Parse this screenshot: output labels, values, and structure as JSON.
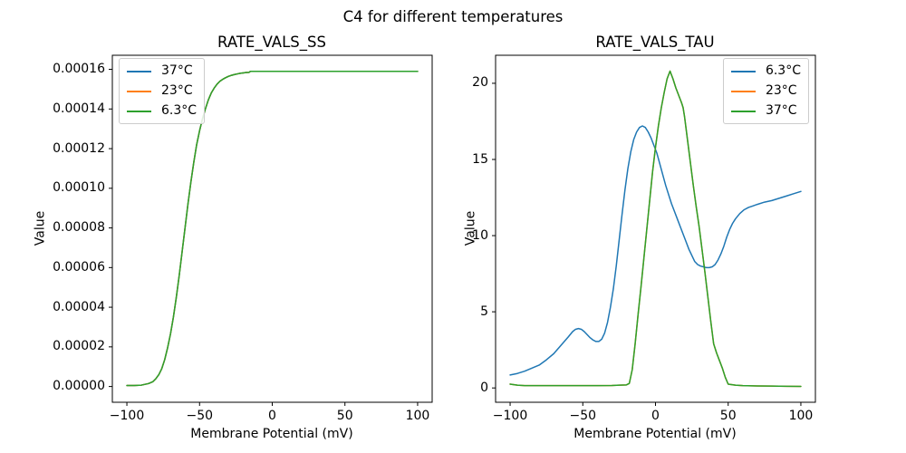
{
  "figure": {
    "suptitle": "C4 for different temperatures",
    "background_color": "#ffffff",
    "text_color": "#000000",
    "spine_color": "#000000"
  },
  "palette": {
    "blue": "#1f77b4",
    "orange": "#ff7f0e",
    "green": "#2ca02c"
  },
  "chart_data": [
    {
      "type": "line",
      "title": "RATE_VALS_SS",
      "xlabel": "Membrane Potential (mV)",
      "ylabel": "Value",
      "xlim": [
        -110,
        110
      ],
      "ylim": [
        -0.795,
        16.71
      ],
      "y_scale": 1e-05,
      "grid": false,
      "xticks": {
        "values": [
          -100,
          -50,
          0,
          50,
          100
        ],
        "labels": [
          "−100",
          "−50",
          "0",
          "50",
          "100"
        ]
      },
      "yticks": {
        "values": [
          0,
          2,
          4,
          6,
          8,
          10,
          12,
          14,
          16
        ],
        "labels": [
          "0.00000",
          "0.00002",
          "0.00004",
          "0.00006",
          "0.00008",
          "0.00010",
          "0.00012",
          "0.00014",
          "0.00016"
        ]
      },
      "legend": {
        "position": "upper-left"
      },
      "note": "All three temperature curves overlap exactly; only the last-drawn 6.3°C green curve is visible. y values are in units of y_scale (1e-5). Sigmoid rising from ~0 at −100 mV to plateau 0.0000159, half-max near −60 mV, small step near −15 mV.",
      "series": [
        {
          "name": "37°C",
          "color": "#1f77b4",
          "same_as": "6.3°C",
          "occluded": true
        },
        {
          "name": "23°C",
          "color": "#ff7f0e",
          "same_as": "6.3°C",
          "occluded": true
        },
        {
          "name": "6.3°C",
          "color": "#2ca02c",
          "x": [
            -100,
            -95,
            -90,
            -85,
            -82,
            -80,
            -78,
            -76,
            -74,
            -72,
            -70,
            -68,
            -66,
            -64,
            -62,
            -60,
            -58,
            -56,
            -54,
            -52,
            -50,
            -48,
            -46,
            -44,
            -42,
            -40,
            -38,
            -36,
            -34,
            -32,
            -30,
            -28,
            -26,
            -24,
            -22,
            -20,
            -18,
            -16,
            -15,
            -12,
            -10,
            0,
            20,
            40,
            60,
            80,
            100
          ],
          "y": [
            0.05,
            0.05,
            0.07,
            0.15,
            0.25,
            0.4,
            0.6,
            0.9,
            1.35,
            1.95,
            2.65,
            3.5,
            4.5,
            5.6,
            6.8,
            8.0,
            9.2,
            10.3,
            11.3,
            12.2,
            12.9,
            13.5,
            14.0,
            14.45,
            14.8,
            15.05,
            15.25,
            15.4,
            15.5,
            15.58,
            15.65,
            15.7,
            15.74,
            15.77,
            15.8,
            15.82,
            15.84,
            15.85,
            15.9,
            15.9,
            15.9,
            15.9,
            15.9,
            15.9,
            15.9,
            15.9,
            15.9
          ]
        }
      ]
    },
    {
      "type": "line",
      "title": "RATE_VALS_TAU",
      "xlabel": "Membrane Potential (mV)",
      "ylabel": "Value",
      "xlim": [
        -110,
        110
      ],
      "ylim": [
        -0.94,
        21.84
      ],
      "y_scale": 1,
      "grid": false,
      "xticks": {
        "values": [
          -100,
          -50,
          0,
          50,
          100
        ],
        "labels": [
          "−100",
          "−50",
          "0",
          "50",
          "100"
        ]
      },
      "yticks": {
        "values": [
          0,
          5,
          10,
          15,
          20
        ],
        "labels": [
          "0",
          "5",
          "10",
          "15",
          "20"
        ]
      },
      "legend": {
        "position": "upper-right"
      },
      "note": "23°C curve is fully occluded beneath the 37°C green curve. Blue 6.3°C: small bump ~3.9 at −54 mV, dip ~3.05 at −40, peak 17.2 at −9, flat minimum ~7.9 near +35, rises to 12.9 at +100. Green 37°C: ~0.15 until −18 mV, peak 20.8 at +10, back to ~0.1 after +50.",
      "series": [
        {
          "name": "6.3°C",
          "color": "#1f77b4",
          "x": [
            -100,
            -95,
            -90,
            -85,
            -80,
            -75,
            -70,
            -65,
            -60,
            -57,
            -55,
            -53,
            -51,
            -49,
            -47,
            -45,
            -43,
            -41,
            -39,
            -37,
            -35,
            -33,
            -31,
            -29,
            -27,
            -25,
            -23,
            -21,
            -19,
            -17,
            -15,
            -13,
            -11,
            -9,
            -7,
            -5,
            -3,
            -1,
            1,
            3,
            5,
            7,
            9,
            11,
            13,
            15,
            17,
            19,
            21,
            23,
            25,
            27,
            29,
            31,
            33,
            35,
            37,
            39,
            41,
            43,
            45,
            47,
            49,
            51,
            53,
            55,
            58,
            61,
            64,
            67,
            70,
            75,
            80,
            85,
            90,
            95,
            100
          ],
          "y": [
            0.85,
            0.95,
            1.1,
            1.3,
            1.5,
            1.85,
            2.25,
            2.8,
            3.35,
            3.7,
            3.85,
            3.9,
            3.85,
            3.7,
            3.5,
            3.3,
            3.15,
            3.05,
            3.05,
            3.2,
            3.6,
            4.3,
            5.3,
            6.5,
            8.0,
            9.7,
            11.4,
            13.0,
            14.4,
            15.5,
            16.3,
            16.8,
            17.1,
            17.2,
            17.1,
            16.8,
            16.4,
            15.9,
            15.4,
            14.7,
            14.0,
            13.3,
            12.7,
            12.1,
            11.6,
            11.1,
            10.6,
            10.1,
            9.6,
            9.1,
            8.7,
            8.3,
            8.1,
            8.0,
            7.95,
            7.9,
            7.9,
            7.95,
            8.1,
            8.4,
            8.8,
            9.3,
            9.9,
            10.4,
            10.8,
            11.1,
            11.45,
            11.7,
            11.85,
            11.95,
            12.05,
            12.2,
            12.3,
            12.45,
            12.6,
            12.75,
            12.9
          ]
        },
        {
          "name": "23°C",
          "color": "#ff7f0e",
          "same_as": "37°C",
          "occluded": true
        },
        {
          "name": "37°C",
          "color": "#2ca02c",
          "x": [
            -100,
            -95,
            -90,
            -80,
            -70,
            -60,
            -50,
            -40,
            -30,
            -25,
            -20,
            -18,
            -16,
            -14,
            -12,
            -10,
            -8,
            -6,
            -4,
            -2,
            0,
            2,
            4,
            6,
            8,
            10,
            12,
            14,
            16,
            18,
            19,
            20,
            22,
            24,
            26,
            28,
            30,
            32,
            34,
            36,
            38,
            40,
            42,
            44,
            46,
            48,
            50,
            55,
            60,
            70,
            80,
            90,
            100
          ],
          "y": [
            0.25,
            0.18,
            0.15,
            0.15,
            0.15,
            0.15,
            0.15,
            0.15,
            0.16,
            0.18,
            0.2,
            0.3,
            1.2,
            2.9,
            4.8,
            6.6,
            8.5,
            10.4,
            12.3,
            14.2,
            15.8,
            17.2,
            18.4,
            19.4,
            20.3,
            20.8,
            20.3,
            19.7,
            19.2,
            18.7,
            18.4,
            17.8,
            16.3,
            14.8,
            13.3,
            11.9,
            10.6,
            9.1,
            7.6,
            6.0,
            4.4,
            2.9,
            2.3,
            1.8,
            1.3,
            0.7,
            0.25,
            0.18,
            0.15,
            0.13,
            0.12,
            0.11,
            0.1
          ]
        }
      ]
    }
  ]
}
